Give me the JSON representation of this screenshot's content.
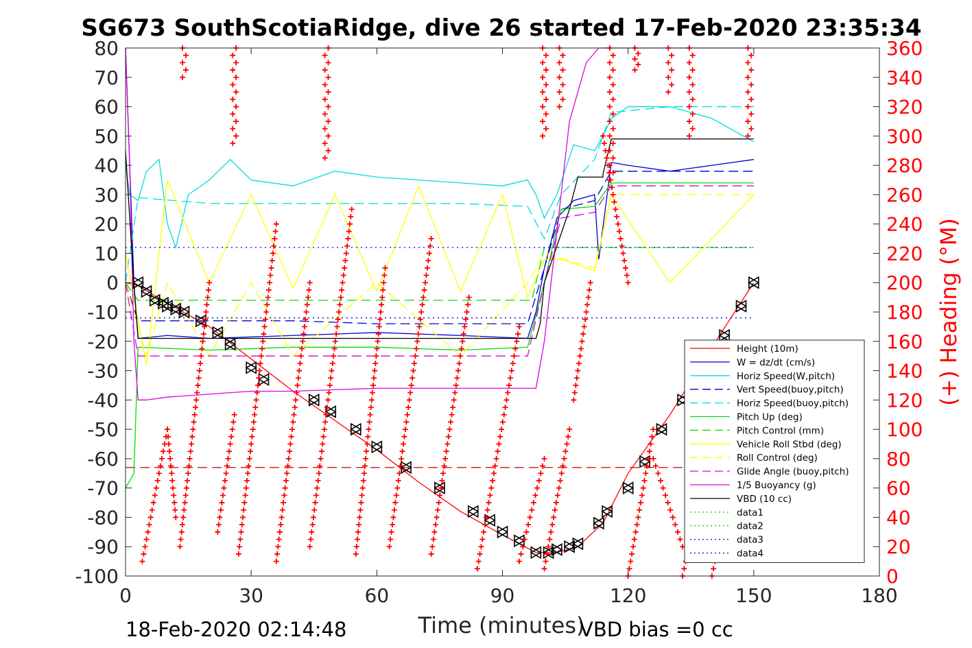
{
  "chart_data": {
    "type": "line",
    "title": "SG673 SouthScotiaRidge, dive 26 started 17-Feb-2020 23:35:34",
    "xlabel": "Time (minutes)",
    "ylabel_right": "(+) Heading (°M)",
    "xlim": [
      0,
      180
    ],
    "ylim_left": [
      -100,
      80
    ],
    "ylim_right": [
      0,
      360
    ],
    "xticks": [
      "0",
      "30",
      "60",
      "90",
      "120",
      "150",
      "180"
    ],
    "yticks_left": [
      "80",
      "70",
      "60",
      "50",
      "40",
      "30",
      "20",
      "10",
      "0",
      "-10",
      "-20",
      "-30",
      "-40",
      "-50",
      "-60",
      "-70",
      "-80",
      "-90",
      "-100"
    ],
    "yticks_right": [
      "360",
      "340",
      "320",
      "300",
      "280",
      "260",
      "240",
      "220",
      "200",
      "180",
      "160",
      "140",
      "120",
      "100",
      "80",
      "60",
      "40",
      "20",
      "0"
    ],
    "footer_left": "18-Feb-2020 02:14:48",
    "footer_right": "VBD bias =0 cc",
    "grid": false,
    "legend_position": "bottom-right",
    "series": [
      {
        "name": "Height (10m)",
        "color": "#ff0000",
        "style": "solid",
        "x": [
          0,
          3,
          10,
          20,
          30,
          40,
          50,
          60,
          70,
          80,
          90,
          98,
          103,
          108,
          114,
          120,
          130,
          140,
          150
        ],
        "y": [
          0,
          -1,
          -7,
          -15,
          -26,
          -37,
          -47,
          -57,
          -68,
          -78,
          -86,
          -92,
          -92,
          -90,
          -82,
          -65,
          -45,
          -22,
          0
        ]
      },
      {
        "name": "W = dz/dt (cm/s)",
        "color": "#0000cc",
        "style": "solid",
        "x": [
          0,
          2,
          3,
          10,
          20,
          40,
          60,
          80,
          96,
          98,
          100,
          103,
          107,
          112,
          113,
          116,
          120,
          130,
          140,
          150
        ],
        "y": [
          80,
          0,
          -19,
          -18,
          -19,
          -18,
          -17,
          -18,
          -19,
          -10,
          5,
          22,
          28,
          30,
          8,
          41,
          40,
          38,
          40,
          42
        ]
      },
      {
        "name": "Horiz Speed(W,pitch)",
        "color": "#00dddd",
        "style": "solid",
        "x": [
          0,
          1,
          3,
          5,
          8,
          10,
          12,
          15,
          20,
          25,
          30,
          40,
          50,
          60,
          70,
          80,
          90,
          96,
          98,
          100,
          103,
          107,
          112,
          114,
          116,
          120,
          130,
          140,
          150
        ],
        "y": [
          40,
          30,
          28,
          38,
          42,
          20,
          12,
          30,
          35,
          42,
          35,
          33,
          38,
          36,
          35,
          34,
          33,
          35,
          30,
          22,
          30,
          47,
          45,
          50,
          56,
          60,
          60,
          56,
          48
        ]
      },
      {
        "name": "Vert Speed(buoy,pitch)",
        "color": "#0000cc",
        "style": "dashed",
        "x": [
          0,
          3,
          20,
          40,
          60,
          80,
          96,
          100,
          104,
          112,
          116,
          150
        ],
        "y": [
          0,
          -13,
          -13,
          -13,
          -14,
          -14,
          -14,
          5,
          25,
          28,
          38,
          38
        ]
      },
      {
        "name": "Horiz Speed(buoy,pitch)",
        "color": "#00dddd",
        "style": "dashed",
        "x": [
          0,
          3,
          20,
          40,
          60,
          80,
          96,
          100,
          104,
          112,
          116,
          130,
          150
        ],
        "y": [
          0,
          29,
          27,
          27,
          27,
          27,
          26,
          15,
          30,
          42,
          58,
          60,
          60
        ]
      },
      {
        "name": "Pitch Up (deg)",
        "color": "#00dd00",
        "style": "solid",
        "x": [
          0,
          2,
          3,
          20,
          40,
          60,
          80,
          96,
          100,
          104,
          112,
          116,
          150
        ],
        "y": [
          -70,
          -65,
          -22,
          -23,
          -22,
          -22,
          -23,
          -22,
          0,
          25,
          26,
          34,
          34
        ]
      },
      {
        "name": "Pitch Control (mm)",
        "color": "#00dd00",
        "style": "dashed",
        "x": [
          0,
          3,
          20,
          40,
          60,
          80,
          97,
          100,
          150
        ],
        "y": [
          0,
          -6,
          -6,
          -6,
          -6,
          -6,
          -6,
          12,
          12
        ]
      },
      {
        "name": "Vehicle Roll Stbd (deg)",
        "color": "#ffff00",
        "style": "solid",
        "x": [
          0,
          5,
          10,
          20,
          30,
          40,
          50,
          60,
          70,
          80,
          90,
          96,
          100,
          104,
          112,
          116,
          130,
          150
        ],
        "y": [
          10,
          -28,
          35,
          0,
          30,
          -2,
          30,
          -3,
          33,
          -3,
          30,
          -5,
          8,
          8,
          4,
          30,
          0,
          30
        ]
      },
      {
        "name": "Roll Control (deg)",
        "color": "#ffff00",
        "style": "dashed",
        "x": [
          0,
          5,
          10,
          20,
          30,
          40,
          60,
          80,
          96,
          100,
          112,
          116,
          150
        ],
        "y": [
          0,
          -25,
          0,
          -25,
          0,
          -25,
          0,
          -25,
          0,
          10,
          5,
          30,
          30
        ]
      },
      {
        "name": "Glide Angle (buoy,pitch)",
        "color": "#dd00dd",
        "style": "dashed",
        "x": [
          0,
          3,
          20,
          40,
          60,
          80,
          96,
          100,
          104,
          112,
          116,
          150
        ],
        "y": [
          0,
          -25,
          -25,
          -25,
          -25,
          -25,
          -25,
          0,
          22,
          24,
          33,
          33
        ]
      },
      {
        "name": "1/5 Buoyancy (g)",
        "color": "#dd00dd",
        "style": "solid",
        "x": [
          0,
          1,
          2,
          3,
          5,
          10,
          20,
          30,
          40,
          60,
          80,
          98,
          100,
          106,
          110,
          113,
          116,
          150
        ],
        "y": [
          80,
          40,
          -20,
          -40,
          -40,
          -39,
          -38,
          -37,
          -37,
          -36,
          -36,
          -36,
          -20,
          55,
          75,
          80,
          80,
          80
        ]
      },
      {
        "name": "VBD (10 cc)",
        "color": "#000000",
        "style": "solid",
        "x": [
          0,
          2,
          3,
          96,
          98,
          99,
          100,
          106,
          108,
          114,
          114,
          116,
          150
        ],
        "y": [
          45,
          -1,
          -19,
          -19,
          -19,
          -14,
          0,
          25,
          36,
          36,
          37,
          49,
          49
        ]
      },
      {
        "name": "data1",
        "color": "#00dd00",
        "style": "dotted",
        "x": [],
        "y": []
      },
      {
        "name": "data2",
        "color": "#00dd00",
        "style": "dotted",
        "x": [],
        "y": []
      },
      {
        "name": "data3",
        "color": "#0000cc",
        "style": "dotted",
        "x": [
          0,
          150
        ],
        "y": [
          12,
          12
        ]
      },
      {
        "name": "data4",
        "color": "#0000cc",
        "style": "dotted",
        "x": [
          0,
          150
        ],
        "y": [
          -12,
          -12
        ]
      }
    ],
    "extra_lines": [
      {
        "color": "#cc0000",
        "style": "dashed",
        "x": [
          0,
          150
        ],
        "y": [
          -63,
          -63
        ]
      }
    ],
    "heading_marker": "+",
    "heading_color": "#ff0000",
    "heading_segments": [
      {
        "x0": 4,
        "x1": 10,
        "h0": 10,
        "h1": 100
      },
      {
        "x0": 10,
        "x1": 12,
        "h0": 100,
        "h1": 40
      },
      {
        "x0": 13,
        "x1": 20,
        "h0": 20,
        "h1": 200
      },
      {
        "x0": 22,
        "x1": 26,
        "h0": 30,
        "h1": 110
      },
      {
        "x0": 27,
        "x1": 36,
        "h0": 15,
        "h1": 240
      },
      {
        "x0": 36,
        "x1": 44,
        "h0": 10,
        "h1": 200
      },
      {
        "x0": 44,
        "x1": 54,
        "h0": 20,
        "h1": 250
      },
      {
        "x0": 55,
        "x1": 62,
        "h0": 15,
        "h1": 210
      },
      {
        "x0": 63,
        "x1": 73,
        "h0": 20,
        "h1": 230
      },
      {
        "x0": 73,
        "x1": 82,
        "h0": 15,
        "h1": 190
      },
      {
        "x0": 84,
        "x1": 94,
        "h0": 5,
        "h1": 170
      },
      {
        "x0": 94,
        "x1": 100,
        "h0": 10,
        "h1": 80
      },
      {
        "x0": 100,
        "x1": 106,
        "h0": 5,
        "h1": 100
      },
      {
        "x0": 107,
        "x1": 111,
        "h0": 120,
        "h1": 200
      },
      {
        "x0": 114,
        "x1": 120,
        "h0": 300,
        "h1": 200
      },
      {
        "x0": 120,
        "x1": 126,
        "h0": 0,
        "h1": 100
      },
      {
        "x0": 126,
        "x1": 133,
        "h0": 80,
        "h1": 20
      },
      {
        "x0": 133,
        "x1": 139,
        "h0": 0,
        "h1": 80
      },
      {
        "x0": 140,
        "x1": 146,
        "h0": 0,
        "h1": 80
      }
    ],
    "heading_clusters": [
      {
        "x": 14,
        "h0": 340,
        "h1": 360
      },
      {
        "x": 26,
        "h0": 295,
        "h1": 360
      },
      {
        "x": 48,
        "h0": 285,
        "h1": 360
      },
      {
        "x": 100,
        "h0": 300,
        "h1": 360
      },
      {
        "x": 104,
        "h0": 320,
        "h1": 360
      },
      {
        "x": 116,
        "h0": 270,
        "h1": 360
      },
      {
        "x": 122,
        "h0": 345,
        "h1": 360
      },
      {
        "x": 130,
        "h0": 330,
        "h1": 360
      },
      {
        "x": 135,
        "h0": 300,
        "h1": 360
      },
      {
        "x": 149,
        "h0": 300,
        "h1": 360
      }
    ],
    "triangle_points": {
      "x": [
        3,
        5,
        7,
        9,
        10,
        12,
        14,
        18,
        22,
        25,
        30,
        33,
        45,
        49,
        55,
        60,
        67,
        75,
        83,
        87,
        90,
        94,
        98,
        101,
        103,
        106,
        108,
        113,
        115,
        120,
        124,
        128,
        133,
        137,
        143,
        147,
        150
      ],
      "y": [
        0,
        -3,
        -6,
        -7,
        -8,
        -9,
        -10,
        -13,
        -17,
        -21,
        -29,
        -33,
        -40,
        -44,
        -50,
        -56,
        -63,
        -70,
        -78,
        -81,
        -85,
        -88,
        -92,
        -92,
        -91,
        -90,
        -89,
        -82,
        -78,
        -70,
        -61,
        -50,
        -40,
        -30,
        -18,
        -8,
        0
      ]
    }
  }
}
